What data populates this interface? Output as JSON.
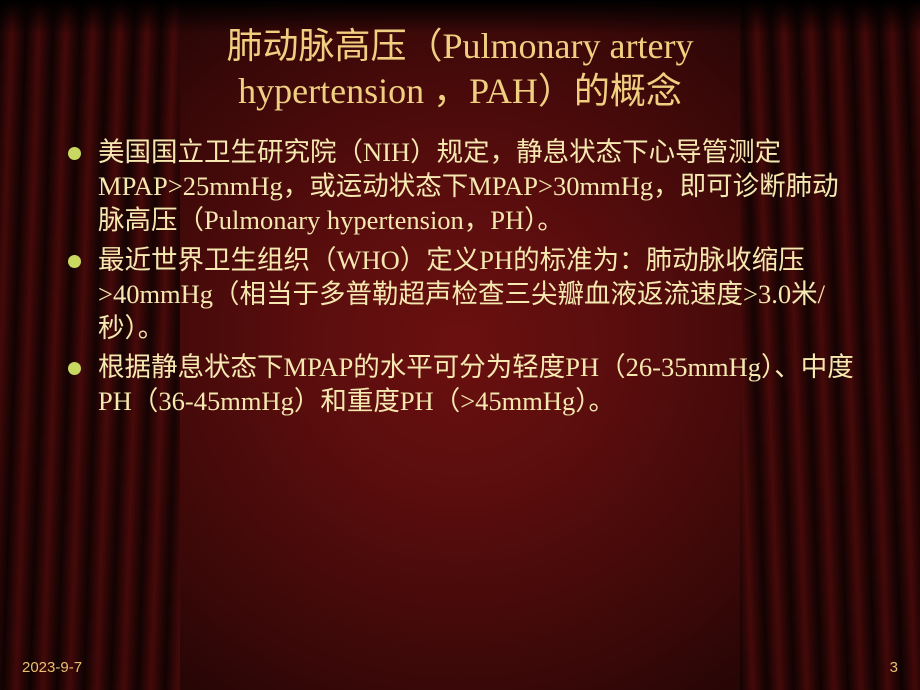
{
  "colors": {
    "title_color": "#f0d080",
    "body_text_color": "#f5e8b0",
    "bullet_color": "#c8d860",
    "footer_color": "#e8c070"
  },
  "typography": {
    "title_fontsize": 36,
    "body_fontsize": 26.5,
    "footer_fontsize": 15,
    "font_family": "SimSun"
  },
  "title": {
    "line1": "肺动脉高压（Pulmonary artery",
    "line2": "hypertension ，PAH）的概念"
  },
  "bullets": [
    "美国国立卫生研究院（NIH）规定，静息状态下心导管测定MPAP>25mmHg，或运动状态下MPAP>30mmHg，即可诊断肺动脉高压（Pulmonary hypertension，PH）。",
    "最近世界卫生组织（WHO）定义PH的标准为：肺动脉收缩压>40mmHg（相当于多普勒超声检查三尖瓣血液返流速度>3.0米/秒）。",
    "根据静息状态下MPAP的水平可分为轻度PH（26-35mmHg）、中度PH（36-45mmHg）和重度PH（>45mmHg）。"
  ],
  "footer": {
    "date": "2023-9-7",
    "page": "3"
  }
}
